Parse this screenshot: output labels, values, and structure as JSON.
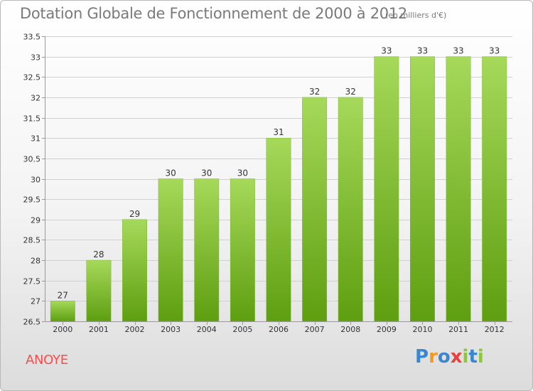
{
  "title": "Dotation Globale de Fonctionnement de 2000 à 2012",
  "subtitle": "(en milliers d'€)",
  "commune": "ANOYE",
  "logo": {
    "text": "Proxiti",
    "letters": [
      {
        "ch": "P",
        "color": "#3a86d0"
      },
      {
        "ch": "r",
        "color": "#f39a1b"
      },
      {
        "ch": "o",
        "color": "#3a86d0"
      },
      {
        "ch": "x",
        "color": "#e8413c"
      },
      {
        "ch": "i",
        "color": "#8cc63f"
      },
      {
        "ch": "t",
        "color": "#3a86d0"
      },
      {
        "ch": "i",
        "color": "#8cc63f"
      }
    ]
  },
  "colors": {
    "bar_top": "#a6d95a",
    "bar_bottom": "#5e9e10",
    "grid": "#d0d0d0",
    "axis": "#9a9a9a",
    "text": "#333333"
  },
  "chart_data": {
    "type": "bar",
    "categories": [
      "2000",
      "2001",
      "2002",
      "2003",
      "2004",
      "2005",
      "2006",
      "2007",
      "2008",
      "2009",
      "2010",
      "2011",
      "2012"
    ],
    "values": [
      27,
      28,
      29,
      30,
      30,
      30,
      31,
      32,
      32,
      33,
      33,
      33,
      33
    ],
    "value_labels": [
      "27",
      "28",
      "29",
      "30",
      "30",
      "30",
      "31",
      "32",
      "32",
      "33",
      "33",
      "33",
      "33"
    ],
    "ylim": [
      26.5,
      33.5
    ],
    "yticks": [
      26.5,
      27,
      27.5,
      28,
      28.5,
      29,
      29.5,
      30,
      30.5,
      31,
      31.5,
      32,
      32.5,
      33,
      33.5
    ],
    "ytick_labels": [
      "26.5",
      "27",
      "27.5",
      "28",
      "28.5",
      "29",
      "29.5",
      "30",
      "30.5",
      "31",
      "31.5",
      "32",
      "32.5",
      "33",
      "33.5"
    ],
    "grid": true,
    "legend": "none"
  }
}
